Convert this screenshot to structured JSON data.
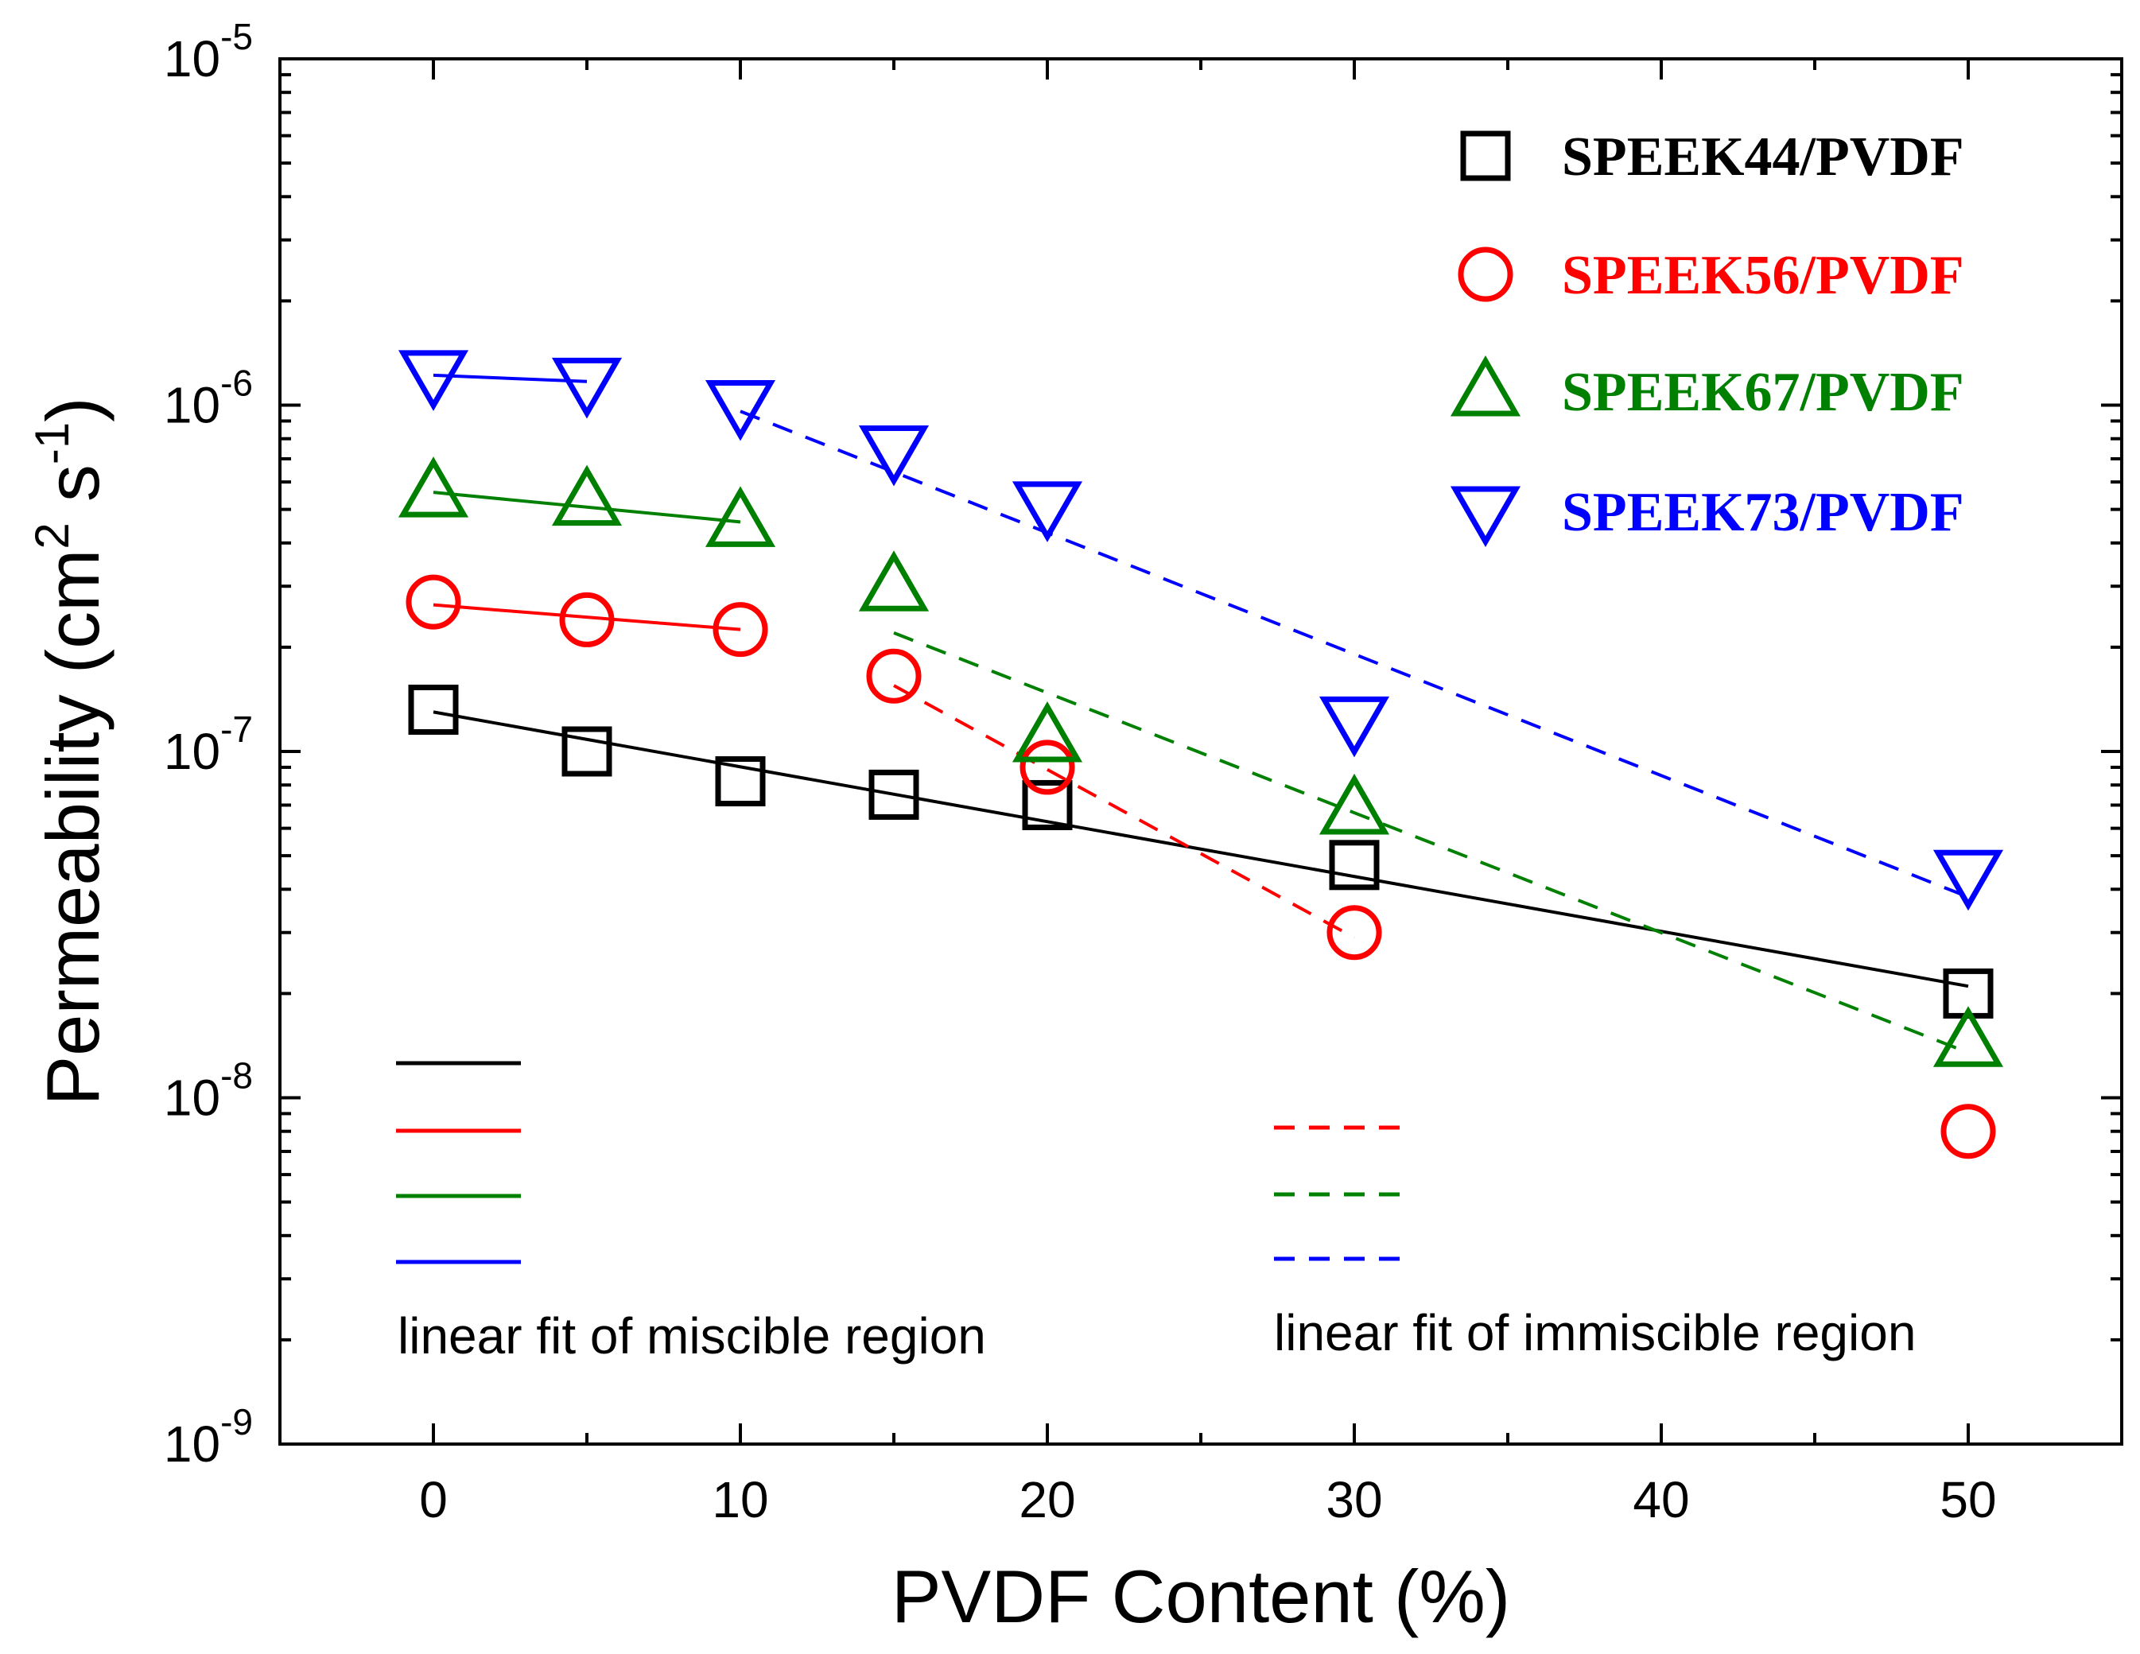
{
  "chart_data": {
    "type": "scatter",
    "x_label": "PVDF Content (%)",
    "y_label": "Permeability (cm",
    "y_label_sup1": "2",
    "y_label_mid": " s",
    "y_label_sup2": "-1",
    "y_label_end": ")",
    "xlim": [
      -5,
      55
    ],
    "ylim": [
      1e-09,
      1e-05
    ],
    "y_scale": "log",
    "x_ticks": [
      0,
      10,
      20,
      30,
      40,
      50
    ],
    "x_tick_labels": [
      "0",
      "10",
      "20",
      "30",
      "40",
      "50"
    ],
    "y_ticks": [
      {
        "value": 1e-09,
        "base": "10",
        "exp": "-9"
      },
      {
        "value": 1e-08,
        "base": "10",
        "exp": "-8"
      },
      {
        "value": 1e-07,
        "base": "10",
        "exp": "-7"
      },
      {
        "value": 1e-06,
        "base": "10",
        "exp": "-6"
      },
      {
        "value": 1e-05,
        "base": "10",
        "exp": "-5"
      }
    ],
    "legend_position": "top-right",
    "series": [
      {
        "name": "SPEEK44/PVDF",
        "color": "#000000",
        "marker": "square",
        "x": [
          0,
          5,
          10,
          15,
          20,
          30,
          50
        ],
        "y": [
          1.32e-07,
          1e-07,
          8.2e-08,
          7.5e-08,
          7e-08,
          4.7e-08,
          2e-08
        ],
        "fit_solid": {
          "x": [
            0,
            50
          ],
          "y": [
            1.3e-07,
            2.1e-08
          ]
        }
      },
      {
        "name": "SPEEK56/PVDF",
        "color": "#ff0000",
        "marker": "circle",
        "x": [
          0,
          5,
          10,
          15,
          20,
          30,
          50
        ],
        "y": [
          2.7e-07,
          2.4e-07,
          2.25e-07,
          1.65e-07,
          9e-08,
          3e-08,
          8e-09
        ],
        "fit_solid": {
          "x": [
            0,
            10
          ],
          "y": [
            2.65e-07,
            2.25e-07
          ]
        },
        "fit_dashed": {
          "x": [
            15,
            30
          ],
          "y": [
            1.55e-07,
            2.9e-08
          ]
        }
      },
      {
        "name": "SPEEK67/PVDF",
        "color": "#008000",
        "marker": "triangle-up",
        "x": [
          0,
          5,
          10,
          15,
          20,
          30,
          50
        ],
        "y": [
          5.6e-07,
          5.3e-07,
          4.6e-07,
          3e-07,
          1.1e-07,
          6.8e-08,
          1.45e-08
        ],
        "fit_solid": {
          "x": [
            0,
            10
          ],
          "y": [
            5.6e-07,
            4.6e-07
          ]
        },
        "fit_dashed": {
          "x": [
            15,
            50
          ],
          "y": [
            2.2e-07,
            1.35e-08
          ]
        }
      },
      {
        "name": "SPEEK73/PVDF",
        "color": "#0000ff",
        "marker": "triangle-down",
        "x": [
          0,
          5,
          10,
          15,
          20,
          30,
          50
        ],
        "y": [
          1.22e-06,
          1.16e-06,
          1e-06,
          7.4e-07,
          5.1e-07,
          1.22e-07,
          4.4e-08
        ],
        "fit_solid": {
          "x": [
            0,
            5
          ],
          "y": [
            1.22e-06,
            1.17e-06
          ]
        },
        "fit_dashed": {
          "x": [
            10,
            50
          ],
          "y": [
            9.6e-07,
            3.8e-08
          ]
        }
      }
    ],
    "fit_legends": {
      "miscible": {
        "label": "linear fit of miscible region",
        "colors": [
          "#000000",
          "#ff0000",
          "#008000",
          "#0000ff"
        ]
      },
      "immiscible": {
        "label": "linear fit of immiscible region",
        "colors": [
          "#ff0000",
          "#008000",
          "#0000ff"
        ]
      }
    }
  }
}
